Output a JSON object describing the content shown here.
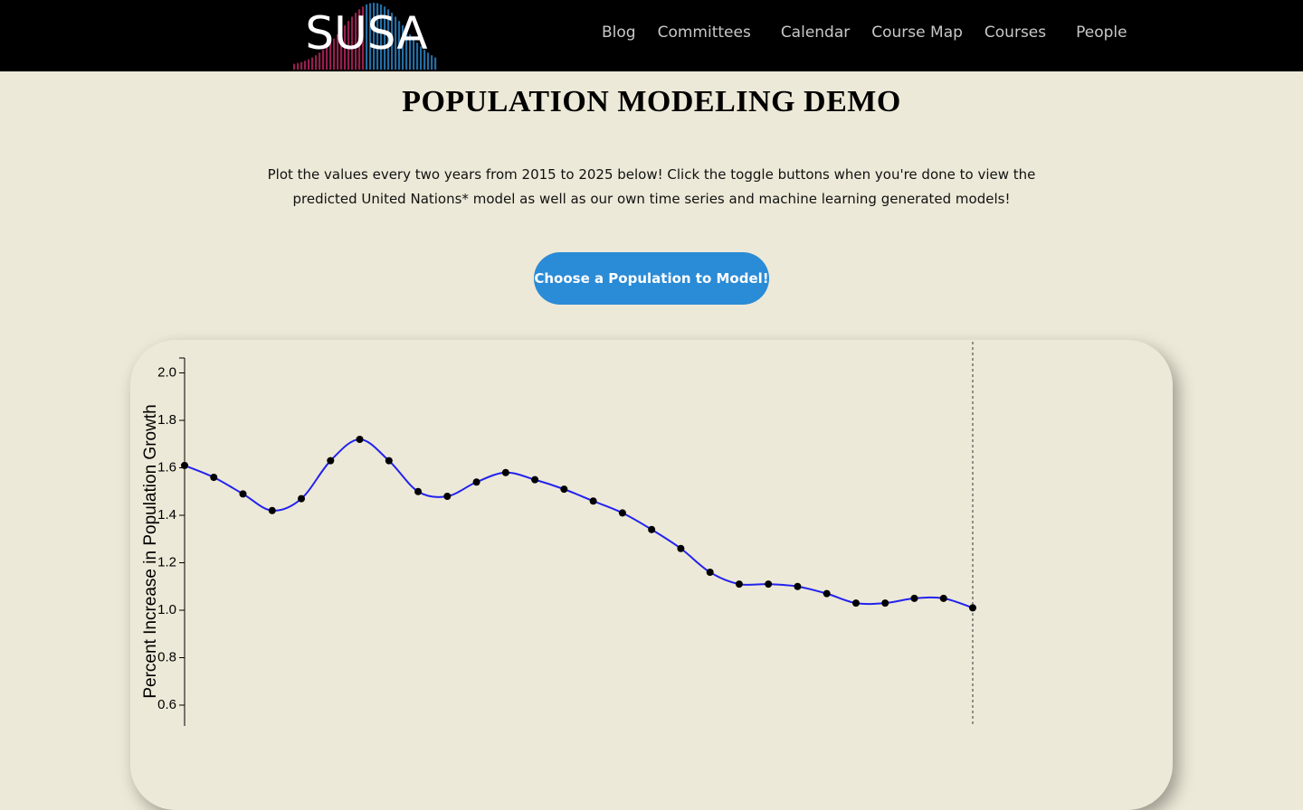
{
  "nav": {
    "logo": "SUSA",
    "items": [
      "Blog",
      "Committees",
      "Calendar",
      "Course Map",
      "Courses",
      "People"
    ]
  },
  "header": {
    "title": "POPULATION MODELING DEMO",
    "description": "Plot the values every two years from 2015 to 2025 below! Click the toggle buttons when you're done to view the predicted United Nations* model as well as our own time series and machine learning generated models!",
    "button": "Choose a Population to Model!"
  },
  "chart_data": {
    "type": "line",
    "y_label": "Percent Increase in Population Growth",
    "categories": [
      null,
      null,
      null,
      null,
      null,
      null,
      null,
      null,
      null,
      null,
      null,
      null,
      null,
      null,
      null,
      null,
      null,
      null,
      null,
      null,
      null,
      null,
      null,
      null,
      null,
      null,
      null,
      null
    ],
    "values": [
      1.61,
      1.56,
      1.49,
      1.42,
      1.47,
      1.63,
      1.72,
      1.63,
      1.5,
      1.48,
      1.54,
      1.58,
      1.55,
      1.51,
      1.46,
      1.41,
      1.34,
      1.26,
      1.16,
      1.11,
      1.11,
      1.1,
      1.07,
      1.03,
      1.03,
      1.05,
      1.05,
      1.01
    ],
    "color": "#2222ee",
    "ylim": [
      0,
      2.06
    ],
    "yticks": [
      0.6,
      0.8,
      {
        "value": 1,
        "label": "1.0"
      },
      1.2,
      1.4,
      1.6,
      1.8,
      {
        "value": 2,
        "label": "2.0"
      }
    ]
  }
}
